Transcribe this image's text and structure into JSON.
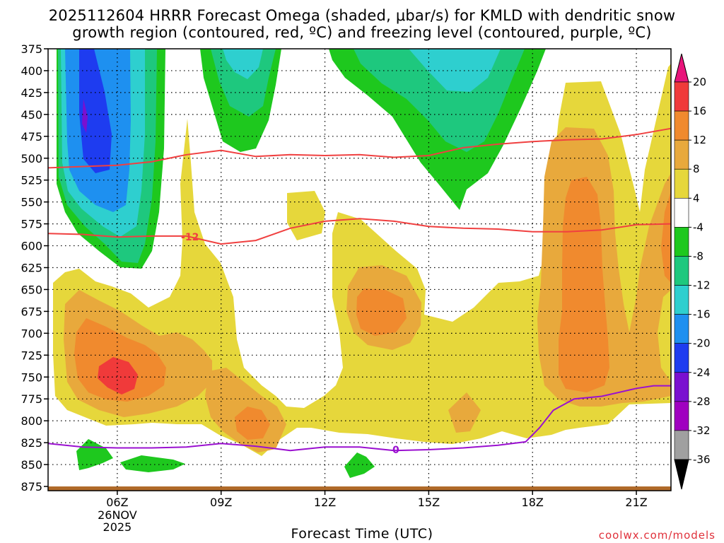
{
  "title_line1": "2025112604 HRRR Forecast Omega (shaded, μbar/s) for KMLD with dendritic snow",
  "title_line2": "growth region (contoured, red, ºC) and freezing level (contoured, purple, ºC)",
  "credit": "coolwx.com/models",
  "chart_data": {
    "type": "time-height contour",
    "xlabel": "Forecast Time (UTC)",
    "x_ticks": [
      "06Z",
      "09Z",
      "12Z",
      "15Z",
      "18Z",
      "21Z"
    ],
    "x_tick_hours": [
      6,
      9,
      12,
      15,
      18,
      21
    ],
    "x_range_hours": [
      4,
      22
    ],
    "date_label_line1": "26NOV",
    "date_label_line2": "2025",
    "y_ticks": [
      375,
      400,
      425,
      450,
      475,
      500,
      525,
      550,
      575,
      600,
      625,
      650,
      675,
      700,
      725,
      750,
      775,
      800,
      825,
      850,
      875
    ],
    "y_range_mb": [
      375,
      875
    ],
    "grid": true,
    "colorbar": {
      "labels": [
        "20",
        "16",
        "12",
        "8",
        "4",
        "-4",
        "-8",
        "-12",
        "-16",
        "-20",
        "-24",
        "-28",
        "-32",
        "-36"
      ],
      "colors": [
        "#f03a3a",
        "#f08a2e",
        "#e8a93c",
        "#e6d73b",
        "#ffffff",
        "#1ec81e",
        "#1ec87e",
        "#2ecfcf",
        "#1e90f0",
        "#1e3cf0",
        "#7a10d0",
        "#a000c0",
        "#a0a0a0"
      ],
      "top_arrow_color": "#e8147a",
      "bottom_arrow_color": "#000000"
    },
    "contour_labels": {
      "dgz_upper": "-12",
      "freezing": "0"
    },
    "dgz_upper_line": [
      [
        4,
        511
      ],
      [
        6,
        508
      ],
      [
        7,
        504
      ],
      [
        8,
        496
      ],
      [
        9,
        491
      ],
      [
        10,
        498
      ],
      [
        11,
        496
      ],
      [
        12,
        497
      ],
      [
        13,
        496
      ],
      [
        14,
        499
      ],
      [
        15,
        497
      ],
      [
        16,
        488
      ],
      [
        17,
        484
      ],
      [
        18,
        481
      ],
      [
        19,
        479
      ],
      [
        20,
        478
      ],
      [
        21,
        473
      ],
      [
        22,
        466
      ]
    ],
    "dgz_lower_line": [
      [
        4,
        586
      ],
      [
        5,
        587
      ],
      [
        6,
        590
      ],
      [
        7,
        589
      ],
      [
        8,
        589
      ],
      [
        9,
        598
      ],
      [
        10,
        594
      ],
      [
        11,
        580
      ],
      [
        12,
        572
      ],
      [
        13,
        569
      ],
      [
        14,
        572
      ],
      [
        15,
        578
      ],
      [
        16,
        580
      ],
      [
        17,
        581
      ],
      [
        18,
        584
      ],
      [
        19,
        584
      ],
      [
        20,
        582
      ],
      [
        21,
        576
      ],
      [
        22,
        575
      ]
    ],
    "freezing_line": [
      [
        4,
        826
      ],
      [
        5,
        830
      ],
      [
        6,
        831
      ],
      [
        7,
        831
      ],
      [
        8,
        830
      ],
      [
        9,
        826
      ],
      [
        10,
        829
      ],
      [
        11,
        834
      ],
      [
        12,
        830
      ],
      [
        13,
        830
      ],
      [
        14,
        834
      ],
      [
        15,
        833
      ],
      [
        16,
        831
      ],
      [
        17,
        828
      ],
      [
        17.8,
        824
      ],
      [
        18.2,
        808
      ],
      [
        18.6,
        788
      ],
      [
        19.2,
        775
      ],
      [
        20,
        772
      ],
      [
        21,
        763
      ],
      [
        21.5,
        760
      ],
      [
        22,
        760
      ]
    ],
    "colors": {
      "dgz_line": "#f04040",
      "freezing_line": "#9a10d0",
      "ground": "#b06a2a"
    }
  }
}
